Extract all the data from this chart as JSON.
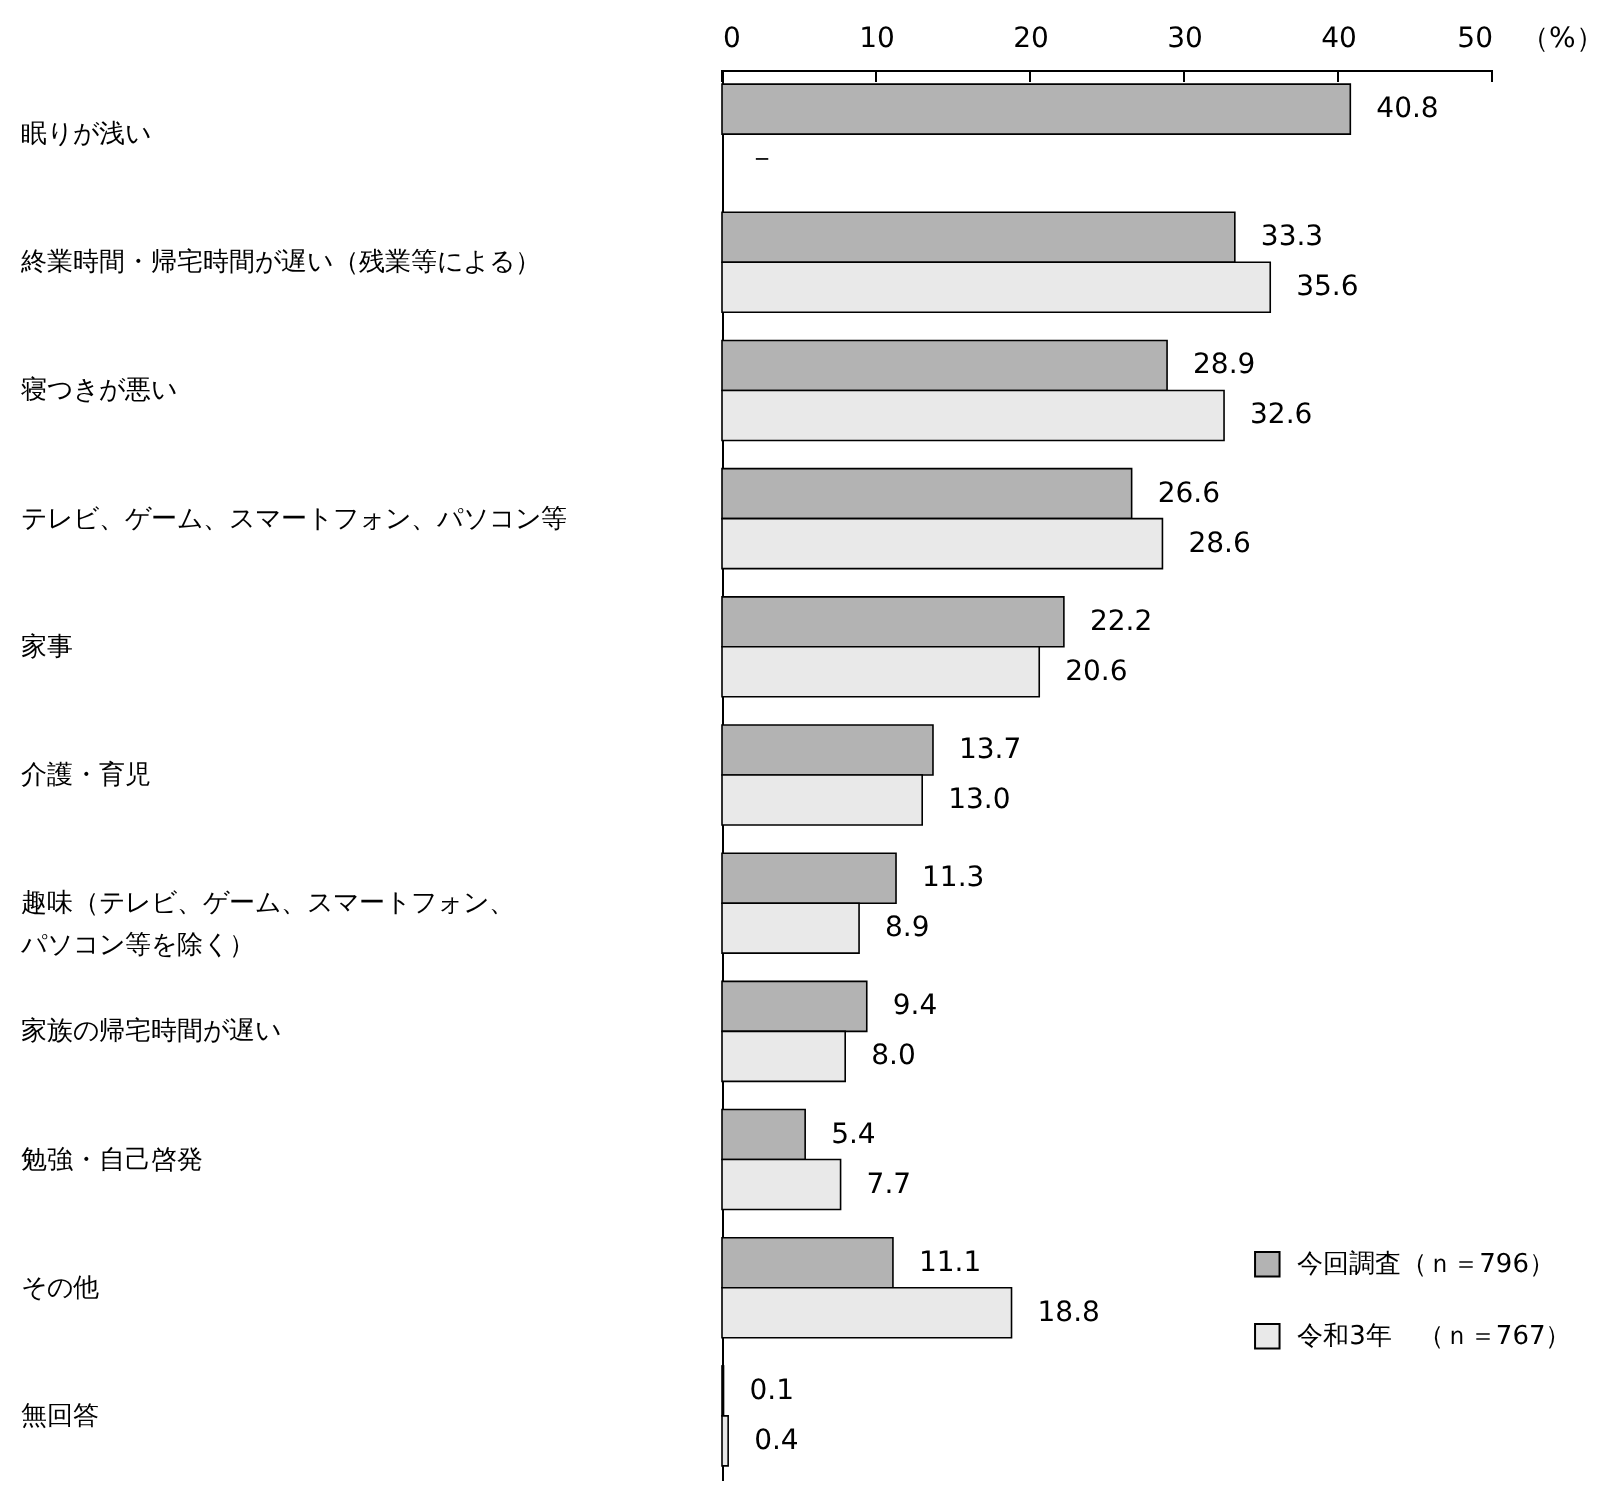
{
  "chart_data": {
    "type": "bar",
    "orientation": "horizontal",
    "categories": [
      "眠りが浅い",
      "終業時間・帰宅時間が遅い（残業等による）",
      "寝つきが悪い",
      "テレビ、ゲーム、スマートフォン、パソコン等",
      "家事",
      "介護・育児",
      "趣味（テレビ、ゲーム、スマートフォン、パソコン等を除く）",
      "家族の帰宅時間が遅い",
      "勉強・自己啓発",
      "その他",
      "無回答"
    ],
    "series": [
      {
        "name": "今回調査（ｎ＝796）",
        "color": "#b3b3b3",
        "values": [
          40.8,
          33.3,
          28.9,
          26.6,
          22.2,
          13.7,
          11.3,
          9.4,
          5.4,
          11.1,
          0.1
        ],
        "value_labels": [
          "40.8",
          "33.3",
          "28.9",
          "26.6",
          "22.2",
          "13.7",
          "11.3",
          "9.4",
          "5.4",
          "11.1",
          "0.1"
        ]
      },
      {
        "name": "令和3年　（ｎ＝767）",
        "color": "#e9e9e9",
        "values": [
          null,
          35.6,
          32.6,
          28.6,
          20.6,
          13.0,
          8.9,
          8.0,
          7.7,
          18.8,
          0.4
        ],
        "value_labels": [
          "－",
          "35.6",
          "32.6",
          "28.6",
          "20.6",
          "13.0",
          "8.9",
          "8.0",
          "7.7",
          "18.8",
          "0.4"
        ]
      }
    ],
    "xlabel": "（%）",
    "xlim": [
      0,
      50
    ],
    "xticks": [
      0,
      10,
      20,
      30,
      40,
      50
    ],
    "legend": "bottom right"
  }
}
